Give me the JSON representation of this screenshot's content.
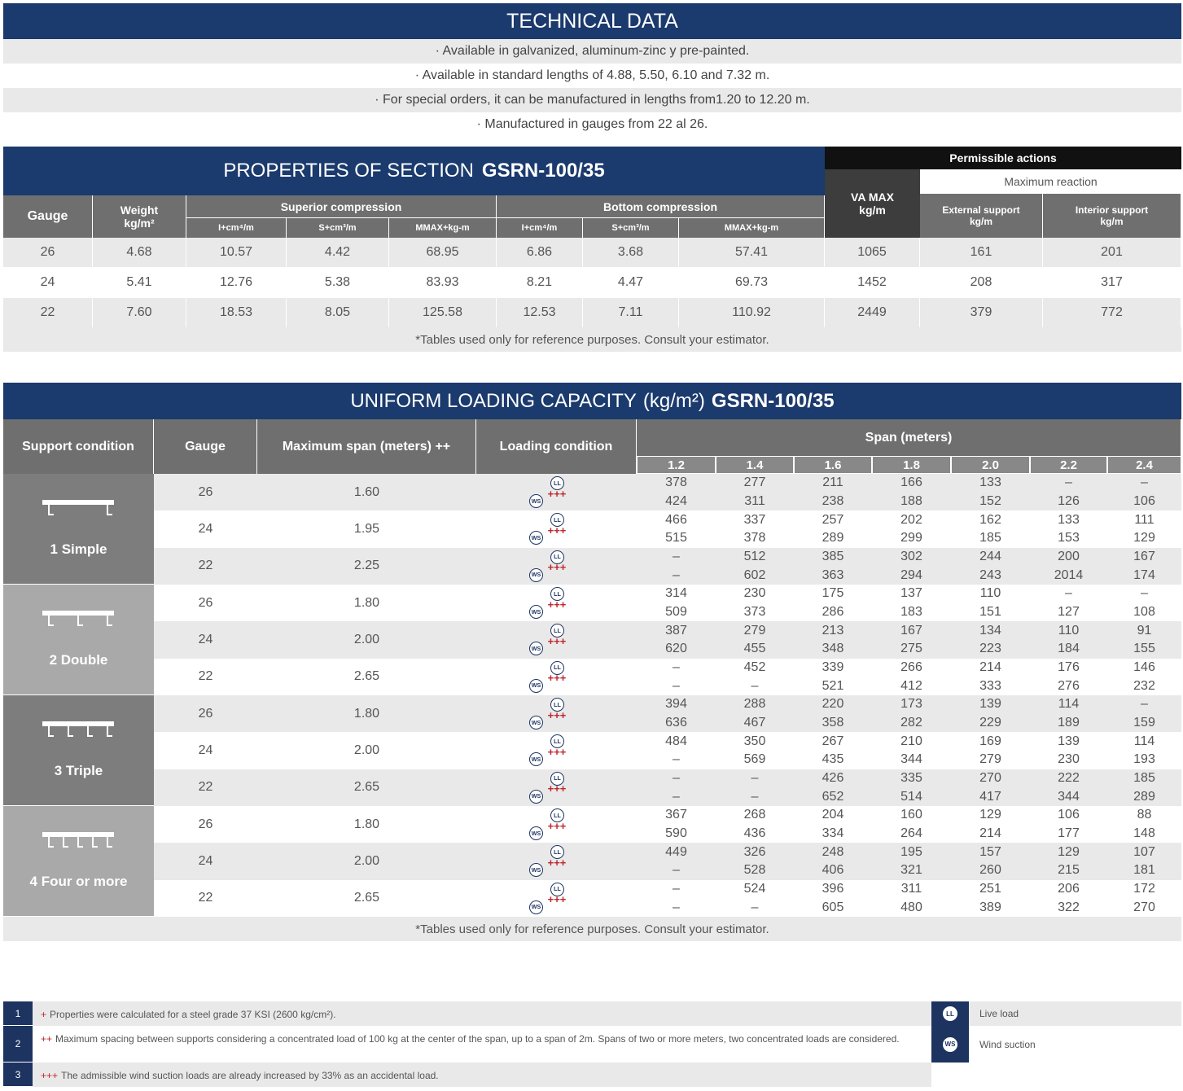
{
  "technical": {
    "title": "TECHNICAL DATA",
    "lines": [
      "· Available in galvanized, aluminum-zinc y pre-painted.",
      "· Available in standard lengths of 4.88, 5.50, 6.10 and 7.32 m.",
      "· For special orders, it can be manufactured in lengths from1.20 to 12.20 m.",
      "· Manufactured in gauges from 22 al 26."
    ]
  },
  "properties": {
    "title": "PROPERTIES OF SECTION",
    "model": "GSRN-100/35",
    "permissible": "Permissible actions",
    "max_reaction": "Maximum reaction",
    "headers": {
      "gauge": "Gauge",
      "weight": "Weight kg/m²",
      "superior": "Superior compression",
      "bottom": "Bottom compression",
      "superior_sub": [
        "I+cm⁴/m",
        "S+cm³/m",
        "MMAX+kg-m"
      ],
      "bottom_sub": [
        "I+cm⁴/m",
        "S+cm³/m",
        "MMAX+kg-m"
      ],
      "va_max": "VA MAX kg/m",
      "external": "External support kg/m",
      "interior": "Interior support kg/m"
    },
    "rows": [
      [
        "26",
        "4.68",
        "10.57",
        "4.42",
        "68.95",
        "6.86",
        "3.68",
        "57.41",
        "1065",
        "161",
        "201"
      ],
      [
        "24",
        "5.41",
        "12.76",
        "5.38",
        "83.93",
        "8.21",
        "4.47",
        "69.73",
        "1452",
        "208",
        "317"
      ],
      [
        "22",
        "7.60",
        "18.53",
        "8.05",
        "125.58",
        "12.53",
        "7.11",
        "110.92",
        "2449",
        "379",
        "772"
      ]
    ],
    "note": "*Tables used only for reference purposes. Consult your estimator."
  },
  "uniform": {
    "title": "UNIFORM LOADING CAPACITY",
    "unit": "(kg/m²)",
    "model": "GSRN-100/35",
    "headers": {
      "support": "Support condition",
      "gauge": "Gauge",
      "max_span": "Maximum span (meters) ++",
      "loading": "Loading condition",
      "span": "Span (meters)"
    },
    "spans": [
      "1.2",
      "1.4",
      "1.6",
      "1.8",
      "2.0",
      "2.2",
      "2.4"
    ],
    "icons": {
      "ll": "LL",
      "ws": "WS",
      "plus": "+++"
    },
    "groups": [
      {
        "label": "1 Simple",
        "rows": [
          {
            "gauge": "26",
            "max_span": "1.60",
            "ll": [
              "378",
              "277",
              "211",
              "166",
              "133",
              "–",
              "–"
            ],
            "ws": [
              "424",
              "311",
              "238",
              "188",
              "152",
              "126",
              "106"
            ]
          },
          {
            "gauge": "24",
            "max_span": "1.95",
            "ll": [
              "466",
              "337",
              "257",
              "202",
              "162",
              "133",
              "111"
            ],
            "ws": [
              "515",
              "378",
              "289",
              "299",
              "185",
              "153",
              "129"
            ]
          },
          {
            "gauge": "22",
            "max_span": "2.25",
            "ll": [
              "–",
              "512",
              "385",
              "302",
              "244",
              "200",
              "167"
            ],
            "ws": [
              "–",
              "602",
              "363",
              "294",
              "243",
              "2014",
              "174"
            ]
          }
        ]
      },
      {
        "label": "2 Double",
        "rows": [
          {
            "gauge": "26",
            "max_span": "1.80",
            "ll": [
              "314",
              "230",
              "175",
              "137",
              "110",
              "–",
              "–"
            ],
            "ws": [
              "509",
              "373",
              "286",
              "183",
              "151",
              "127",
              "108"
            ]
          },
          {
            "gauge": "24",
            "max_span": "2.00",
            "ll": [
              "387",
              "279",
              "213",
              "167",
              "134",
              "110",
              "91"
            ],
            "ws": [
              "620",
              "455",
              "348",
              "275",
              "223",
              "184",
              "155"
            ]
          },
          {
            "gauge": "22",
            "max_span": "2.65",
            "ll": [
              "–",
              "452",
              "339",
              "266",
              "214",
              "176",
              "146"
            ],
            "ws": [
              "–",
              "–",
              "521",
              "412",
              "333",
              "276",
              "232"
            ]
          }
        ]
      },
      {
        "label": "3 Triple",
        "rows": [
          {
            "gauge": "26",
            "max_span": "1.80",
            "ll": [
              "394",
              "288",
              "220",
              "173",
              "139",
              "114",
              "–"
            ],
            "ws": [
              "636",
              "467",
              "358",
              "282",
              "229",
              "189",
              "159"
            ]
          },
          {
            "gauge": "24",
            "max_span": "2.00",
            "ll": [
              "484",
              "350",
              "267",
              "210",
              "169",
              "139",
              "114"
            ],
            "ws": [
              "–",
              "569",
              "435",
              "344",
              "279",
              "230",
              "193"
            ]
          },
          {
            "gauge": "22",
            "max_span": "2.65",
            "ll": [
              "–",
              "–",
              "426",
              "335",
              "270",
              "222",
              "185"
            ],
            "ws": [
              "–",
              "–",
              "652",
              "514",
              "417",
              "344",
              "289"
            ]
          }
        ]
      },
      {
        "label": "4 Four or more",
        "rows": [
          {
            "gauge": "26",
            "max_span": "1.80",
            "ll": [
              "367",
              "268",
              "204",
              "160",
              "129",
              "106",
              "88"
            ],
            "ws": [
              "590",
              "436",
              "334",
              "264",
              "214",
              "177",
              "148"
            ]
          },
          {
            "gauge": "24",
            "max_span": "2.00",
            "ll": [
              "449",
              "326",
              "248",
              "195",
              "157",
              "129",
              "107"
            ],
            "ws": [
              "–",
              "528",
              "406",
              "321",
              "260",
              "215",
              "181"
            ]
          },
          {
            "gauge": "22",
            "max_span": "2.65",
            "ll": [
              "–",
              "524",
              "396",
              "311",
              "251",
              "206",
              "172"
            ],
            "ws": [
              "–",
              "–",
              "605",
              "480",
              "389",
              "322",
              "270"
            ]
          }
        ]
      }
    ],
    "note": "*Tables used only for reference purposes. Consult your estimator."
  },
  "footnotes": [
    {
      "number": "1",
      "marker": "+",
      "text": "Properties were calculated for a steel grade 37 KSI (2600 kg/cm²)."
    },
    {
      "number": "2",
      "marker": "++",
      "text": "Maximum spacing between supports considering a concentrated load of 100 kg at the center of the span, up to a span of 2m. Spans of two or more meters, two concentrated loads are considered."
    },
    {
      "number": "3",
      "marker": "+++",
      "text": "The admissible wind suction loads are already increased by 33% as an accidental load."
    }
  ],
  "legend": [
    {
      "icon": "LL",
      "label": "Live load"
    },
    {
      "icon": "WS",
      "label": "Wind suction"
    }
  ]
}
